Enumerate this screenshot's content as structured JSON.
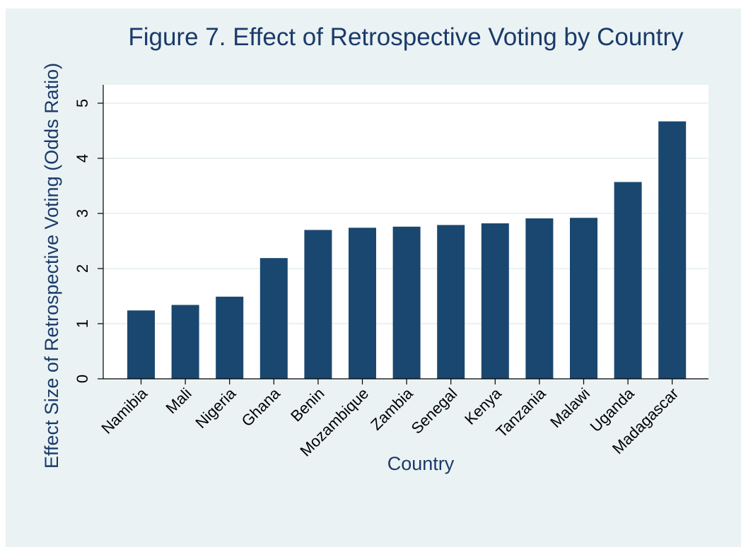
{
  "colors": {
    "outer_background": "#eaf2f3",
    "plot_background": "#ffffff",
    "bar": "#1a476f",
    "text_accent": "#1a3a6a",
    "gridline": "#eaf2f3"
  },
  "chart_data": {
    "type": "bar",
    "title": "Figure 7. Effect of Retrospective Voting by Country",
    "xlabel": "Country",
    "ylabel": "Effect Size of Retrospective Voting (Odds Ratio)",
    "categories": [
      "Namibia",
      "Mali",
      "Nigeria",
      "Ghana",
      "Benin",
      "Mozambique",
      "Zambia",
      "Senegal",
      "Kenya",
      "Tanzania",
      "Malawi",
      "Uganda",
      "Madagascar"
    ],
    "values": [
      1.24,
      1.34,
      1.49,
      2.19,
      2.7,
      2.74,
      2.76,
      2.79,
      2.82,
      2.91,
      2.92,
      3.57,
      4.67
    ],
    "ylim": [
      0,
      5
    ],
    "yticks": [
      0,
      1,
      2,
      3,
      4,
      5
    ],
    "grid": true,
    "legend": "none"
  }
}
